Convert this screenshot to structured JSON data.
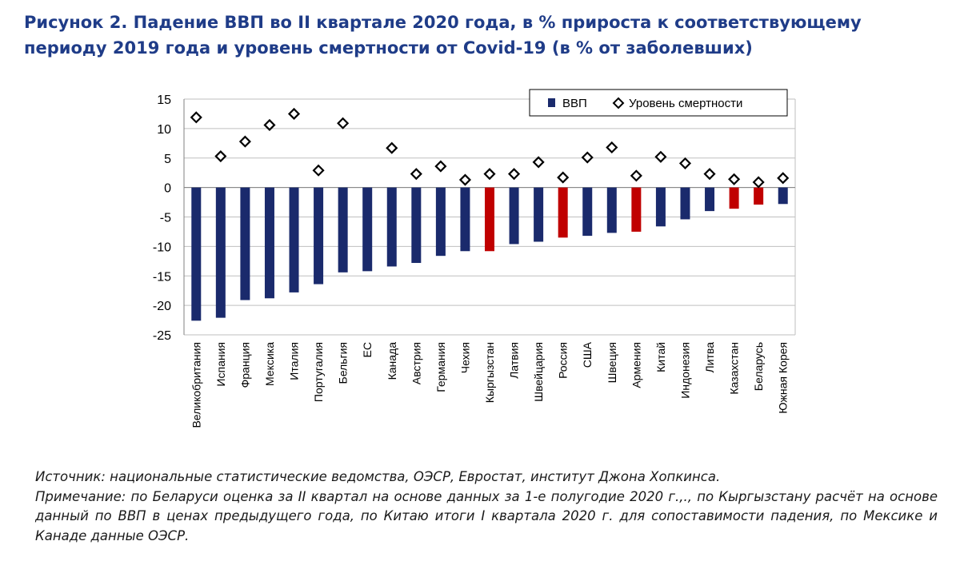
{
  "figure": {
    "title": "Рисунок 2. Падение ВВП во II квартале 2020 года, в % прироста к соответствующему периоду 2019 года и уровень смертности от Covid-19 (в % от заболевших)"
  },
  "colors": {
    "gdp": "#1a2a6c",
    "gdp_highlight": "#c00000",
    "marker": "#000000",
    "title": "#1f3c88"
  },
  "chart_data": {
    "type": "bar",
    "title": "",
    "xlabel": "",
    "ylabel": "",
    "ylim": [
      -25,
      15
    ],
    "yticks": [
      15,
      10,
      5,
      0,
      -5,
      -10,
      -15,
      -20,
      -25
    ],
    "grid": "horizontal",
    "legend_position": "top-right",
    "categories": [
      "Великобритания",
      "Испания",
      "Франция",
      "Мексика",
      "Италия",
      "Португалия",
      "Бельгия",
      "ЕС",
      "Канада",
      "Австрия",
      "Германия",
      "Чехия",
      "Кыргызстан",
      "Латвия",
      "Швейцария",
      "Россия",
      "США",
      "Швеция",
      "Армения",
      "Китай",
      "Индонезия",
      "Литва",
      "Казахстан",
      "Беларусь",
      "Южная Корея"
    ],
    "series": [
      {
        "name": "ВВП",
        "kind": "bar",
        "values": [
          -22.6,
          -22.1,
          -19.1,
          -18.8,
          -17.8,
          -16.4,
          -14.4,
          -14.2,
          -13.4,
          -12.8,
          -11.6,
          -10.8,
          -10.8,
          -9.6,
          -9.2,
          -8.5,
          -8.2,
          -7.7,
          -7.5,
          -6.6,
          -5.4,
          -4.0,
          -3.6,
          -2.9,
          -2.8
        ],
        "highlighted": [
          false,
          false,
          false,
          false,
          false,
          false,
          false,
          false,
          false,
          false,
          false,
          false,
          true,
          false,
          false,
          true,
          false,
          false,
          true,
          false,
          false,
          false,
          true,
          true,
          false
        ]
      },
      {
        "name": "Уровень смертности",
        "kind": "marker",
        "marker": "diamond",
        "values": [
          11.9,
          5.3,
          7.8,
          10.6,
          12.5,
          2.9,
          10.9,
          null,
          6.7,
          2.3,
          3.6,
          1.3,
          2.3,
          2.3,
          4.3,
          1.7,
          5.1,
          6.8,
          2.0,
          5.2,
          4.1,
          2.3,
          1.4,
          0.9,
          1.6
        ]
      }
    ]
  },
  "notes": {
    "source": "Источник: национальные статистические ведомства, ОЭСР, Евростат,  институт Джона Хопкинса.",
    "remark": "Примечание: по Беларуси оценка за II квартал на основе данных за 1-е полугодие 2020 г.,., по Кыргызстану расчёт на основе данный по ВВП в ценах предыдущего года, по Китаю итоги I квартала 2020 г. для сопоставимости падения, по Мексике и Канаде данные ОЭСР."
  }
}
